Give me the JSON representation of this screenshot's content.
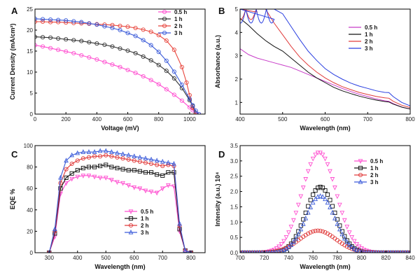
{
  "chart_data": [
    {
      "panel": "A",
      "type": "line",
      "xlabel": "Voltage (mV)",
      "ylabel": "Current Density (mA/cm²)",
      "xlim": [
        0,
        1100
      ],
      "ylim": [
        0,
        25
      ],
      "xticks": [
        0,
        200,
        400,
        600,
        800,
        1000
      ],
      "yticks": [
        0,
        5,
        10,
        15,
        20,
        25
      ],
      "marker": "circle",
      "legend_position": "top-right",
      "series": [
        {
          "name": "0.5 h",
          "color": "#ff4fd0",
          "x": [
            0,
            50,
            100,
            150,
            200,
            250,
            300,
            350,
            400,
            450,
            500,
            550,
            600,
            650,
            700,
            750,
            800,
            850,
            900,
            950,
            1000,
            1020,
            1040,
            1060
          ],
          "y": [
            16.4,
            16.1,
            15.7,
            15.3,
            14.9,
            14.5,
            14.0,
            13.5,
            13.0,
            12.4,
            11.8,
            11.2,
            10.5,
            9.8,
            9.0,
            8.1,
            7.1,
            5.9,
            4.6,
            3.2,
            1.6,
            0.9,
            0.3,
            0.0
          ]
        },
        {
          "name": "1 h",
          "color": "#333333",
          "x": [
            0,
            50,
            100,
            150,
            200,
            250,
            300,
            350,
            400,
            450,
            500,
            550,
            600,
            650,
            700,
            750,
            800,
            850,
            900,
            950,
            1000,
            1020,
            1040
          ],
          "y": [
            18.4,
            18.3,
            18.2,
            18.0,
            17.8,
            17.6,
            17.4,
            17.1,
            16.8,
            16.5,
            16.1,
            15.6,
            15.1,
            14.5,
            13.7,
            12.8,
            11.7,
            10.3,
            8.5,
            6.2,
            3.3,
            1.9,
            0.3
          ]
        },
        {
          "name": "2 h",
          "color": "#e8453c",
          "x": [
            0,
            50,
            100,
            150,
            200,
            250,
            300,
            350,
            400,
            450,
            500,
            550,
            600,
            650,
            700,
            750,
            800,
            850,
            900,
            950,
            980,
            1000,
            1020,
            1040
          ],
          "y": [
            22.0,
            22.0,
            21.9,
            21.9,
            21.8,
            21.7,
            21.6,
            21.5,
            21.4,
            21.3,
            21.2,
            21.0,
            20.8,
            20.5,
            20.1,
            19.6,
            18.8,
            17.5,
            15.3,
            11.2,
            7.5,
            4.5,
            1.5,
            0.0
          ]
        },
        {
          "name": "3 h",
          "color": "#3b5bd9",
          "x": [
            0,
            50,
            100,
            150,
            200,
            250,
            300,
            350,
            400,
            450,
            500,
            550,
            600,
            650,
            700,
            750,
            800,
            850,
            900,
            950,
            1000,
            1020,
            1040,
            1060
          ],
          "y": [
            22.7,
            22.6,
            22.5,
            22.4,
            22.3,
            22.1,
            21.9,
            21.6,
            21.3,
            20.9,
            20.5,
            20.0,
            19.3,
            18.6,
            17.6,
            16.4,
            14.8,
            12.7,
            10.1,
            7.0,
            3.6,
            2.1,
            0.8,
            0.0
          ]
        }
      ]
    },
    {
      "panel": "B",
      "type": "line",
      "xlabel": "Wavelength (nm)",
      "ylabel": "Absorbance (a.u.)",
      "xlim": [
        400,
        800
      ],
      "ylim": [
        0.5,
        5
      ],
      "xticks": [
        400,
        500,
        600,
        700,
        800
      ],
      "yticks": [
        1,
        2,
        3,
        4,
        5
      ],
      "legend_position": "top-right",
      "series": [
        {
          "name": "0.5 h",
          "color": "#c83cc8",
          "x": [
            400,
            420,
            440,
            460,
            480,
            500,
            520,
            540,
            560,
            580,
            600,
            620,
            640,
            660,
            680,
            700,
            720,
            740,
            750,
            760,
            780,
            800
          ],
          "y": [
            3.3,
            3.05,
            2.9,
            2.8,
            2.7,
            2.6,
            2.5,
            2.35,
            2.2,
            2.05,
            1.9,
            1.75,
            1.6,
            1.47,
            1.35,
            1.25,
            1.15,
            1.07,
            1.05,
            0.95,
            0.8,
            0.72
          ]
        },
        {
          "name": "1 h",
          "color": "#111111",
          "x": [
            400,
            420,
            440,
            460,
            480,
            500,
            520,
            540,
            560,
            580,
            600,
            620,
            640,
            660,
            680,
            700,
            720,
            740,
            750,
            760,
            780,
            800
          ],
          "y": [
            4.6,
            4.3,
            3.95,
            3.65,
            3.4,
            3.2,
            2.9,
            2.6,
            2.3,
            2.05,
            1.85,
            1.65,
            1.5,
            1.38,
            1.27,
            1.18,
            1.1,
            1.04,
            1.02,
            0.93,
            0.8,
            0.72
          ]
        },
        {
          "name": "2 h",
          "color": "#e03a3a",
          "x": [
            400,
            420,
            440,
            460,
            480,
            500,
            520,
            540,
            560,
            580,
            600,
            620,
            640,
            660,
            680,
            700,
            720,
            740,
            750,
            760,
            780,
            800
          ],
          "y": [
            5.0,
            5.0,
            5.0,
            5.0,
            4.4,
            3.9,
            3.4,
            2.95,
            2.6,
            2.3,
            2.05,
            1.85,
            1.68,
            1.55,
            1.43,
            1.34,
            1.26,
            1.2,
            1.18,
            1.05,
            0.88,
            0.78
          ]
        },
        {
          "name": "3 h",
          "color": "#2a3fe0",
          "x": [
            400,
            420,
            440,
            460,
            480,
            500,
            520,
            540,
            560,
            580,
            600,
            620,
            640,
            660,
            680,
            700,
            720,
            740,
            750,
            760,
            780,
            800
          ],
          "y": [
            5.0,
            5.0,
            5.0,
            5.0,
            5.0,
            4.8,
            4.25,
            3.7,
            3.2,
            2.8,
            2.45,
            2.2,
            2.0,
            1.83,
            1.7,
            1.6,
            1.5,
            1.43,
            1.42,
            1.25,
            1.0,
            0.85
          ]
        }
      ]
    },
    {
      "panel": "C",
      "type": "line",
      "xlabel": "Wavelength (nm)",
      "ylabel": "EQE %",
      "xlim": [
        250,
        850
      ],
      "ylim": [
        0,
        100
      ],
      "xticks": [
        300,
        400,
        500,
        600,
        700,
        800
      ],
      "yticks": [
        0,
        20,
        40,
        60,
        80,
        100
      ],
      "marker": "mixed",
      "legend_position": "bottom-center",
      "series": [
        {
          "name": "0.5 h",
          "color": "#ff4fd0",
          "marker": "triangle-down",
          "x": [
            300,
            320,
            340,
            360,
            380,
            400,
            420,
            440,
            460,
            480,
            500,
            520,
            540,
            560,
            580,
            600,
            620,
            640,
            660,
            680,
            700,
            720,
            740,
            760,
            780,
            800
          ],
          "y": [
            0,
            15,
            55,
            65,
            69,
            71,
            72,
            72,
            71,
            70,
            70,
            68,
            66,
            65,
            63,
            61,
            60,
            58,
            57,
            56,
            60,
            63,
            62,
            20,
            2,
            0
          ]
        },
        {
          "name": "1 h",
          "color": "#111111",
          "marker": "square",
          "x": [
            300,
            320,
            340,
            360,
            380,
            400,
            420,
            440,
            460,
            480,
            500,
            520,
            540,
            560,
            580,
            600,
            620,
            640,
            660,
            680,
            700,
            720,
            740,
            760,
            780,
            800
          ],
          "y": [
            0,
            18,
            60,
            70,
            74,
            77,
            79,
            80,
            80,
            81,
            82,
            80,
            79,
            78,
            77,
            77,
            76,
            75,
            75,
            73,
            72,
            75,
            75,
            22,
            2,
            0
          ]
        },
        {
          "name": "2 h",
          "color": "#e03a3a",
          "marker": "circle",
          "x": [
            300,
            320,
            340,
            360,
            380,
            400,
            420,
            440,
            460,
            480,
            500,
            520,
            540,
            560,
            580,
            600,
            620,
            640,
            660,
            680,
            700,
            720,
            740,
            760,
            780,
            800
          ],
          "y": [
            0,
            20,
            65,
            78,
            83,
            86,
            88,
            89,
            90,
            90,
            91,
            90,
            89,
            88,
            87,
            86,
            85,
            84,
            83,
            82,
            81,
            82,
            81,
            25,
            2,
            0
          ]
        },
        {
          "name": "3 h",
          "color": "#3b5bd9",
          "marker": "triangle-up",
          "x": [
            300,
            320,
            340,
            360,
            380,
            400,
            420,
            440,
            460,
            480,
            500,
            520,
            540,
            560,
            580,
            600,
            620,
            640,
            660,
            680,
            700,
            720,
            740,
            760,
            780,
            800
          ],
          "y": [
            0,
            22,
            70,
            86,
            91,
            93,
            94,
            94,
            94,
            95,
            95,
            94,
            93,
            92,
            91,
            90,
            89,
            88,
            87,
            86,
            85,
            84,
            83,
            27,
            2,
            0
          ]
        }
      ]
    },
    {
      "panel": "D",
      "type": "scatter",
      "xlabel": "Wavelength (nm)",
      "ylabel": "Intensity (a.u.) 10⁴",
      "xlim": [
        700,
        840
      ],
      "ylim": [
        0,
        3.5
      ],
      "xticks": [
        700,
        720,
        740,
        760,
        780,
        800,
        820,
        840
      ],
      "yticks": [
        0.0,
        0.5,
        1.0,
        1.5,
        2.0,
        2.5,
        3.0,
        3.5
      ],
      "legend_position": "top-right",
      "series": [
        {
          "name": "0.5 h",
          "color": "#ff4fd0",
          "marker": "triangle-down",
          "peak_x": 765,
          "peak_y": 3.28,
          "width": 14
        },
        {
          "name": "1 h",
          "color": "#111111",
          "marker": "square",
          "peak_x": 766,
          "peak_y": 2.15,
          "width": 12
        },
        {
          "name": "2 h",
          "color": "#e03a3a",
          "marker": "circle",
          "peak_x": 764,
          "peak_y": 0.72,
          "width": 15
        },
        {
          "name": "3 h",
          "color": "#3b5bd9",
          "marker": "triangle-up",
          "peak_x": 766,
          "peak_y": 1.85,
          "width": 12
        }
      ]
    }
  ]
}
